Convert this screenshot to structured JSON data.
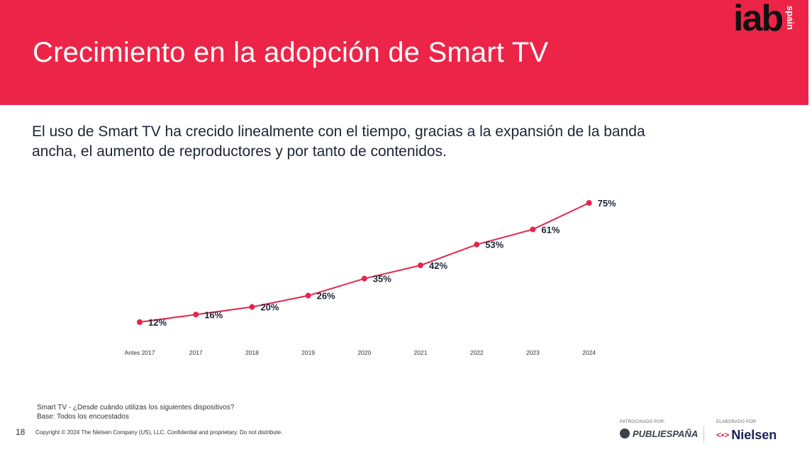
{
  "slide": {
    "title": "Crecimiento en la adopción de Smart TV",
    "subtitle_line1": "El uso de Smart TV ha crecido linealmente con el tiempo, gracias a la expansión de la banda",
    "subtitle_line2": "ancha, el aumento de reproductores y por tanto de contenidos.",
    "logo_main": "iab",
    "logo_sub": "spain",
    "footnote_line1": "Smart TV - ¿Desde cuándo utilizas los siguientes dispositivos?",
    "footnote_line2": "Base: Todos los encuestados",
    "page_number": "18",
    "copyright": "Copyright © 2024 The Nielsen Company (US), LLC. Confidential and proprietary. Do not distribute.",
    "sponsor_label": "PATROCINADO POR:",
    "sponsor_name": "PUBLIESPAÑA",
    "made_by_label": "ELABORADO POR:",
    "made_by_name": "Nielsen",
    "accent_color": "#ec2548"
  },
  "chart_data": {
    "type": "line",
    "categories": [
      "Antes 2017",
      "2017",
      "2018",
      "2019",
      "2020",
      "2021",
      "2022",
      "2023",
      "2024"
    ],
    "series": [
      {
        "values": [
          12,
          16,
          20,
          26,
          35,
          42,
          53,
          61,
          75
        ],
        "labels": [
          "12%",
          "16%",
          "20%",
          "26%",
          "35%",
          "42%",
          "53%",
          "61%",
          "75%"
        ]
      }
    ],
    "ylim": [
      0,
      80
    ],
    "grid": false,
    "legend": "none",
    "line_color": "#e2264d"
  }
}
